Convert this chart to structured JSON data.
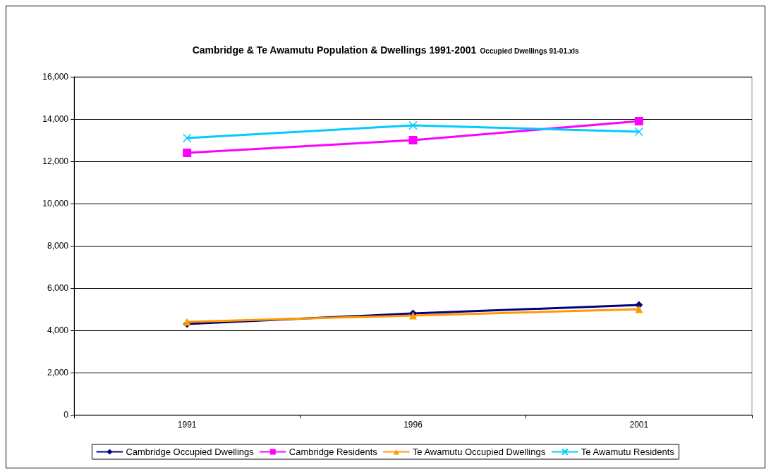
{
  "chart_data": {
    "type": "line",
    "title": "Cambridge & Te Awamutu Population & Dwellings 1991-2001",
    "subtitle": "Occupied Dwellings 91-01.xls",
    "categories": [
      "1991",
      "1996",
      "2001"
    ],
    "series": [
      {
        "name": "Cambridge Occupied Dwellings",
        "color": "#000080",
        "marker": "diamond",
        "values": [
          4300,
          4800,
          5200
        ]
      },
      {
        "name": "Cambridge Residents",
        "color": "#ff00ff",
        "marker": "square",
        "values": [
          12400,
          13000,
          13900
        ]
      },
      {
        "name": "Te Awamutu Occupied Dwellings",
        "color": "#ff9900",
        "marker": "triangle",
        "values": [
          4400,
          4700,
          5000
        ]
      },
      {
        "name": "Te Awamutu Residents",
        "color": "#00ccff",
        "marker": "cross",
        "values": [
          13100,
          13700,
          13400
        ]
      }
    ],
    "ylim": [
      0,
      16000
    ],
    "yticks": [
      0,
      {
        "value": 2000,
        "label": "2,000"
      },
      {
        "value": 4000,
        "label": "4,000"
      },
      {
        "value": 6000,
        "label": "6,000"
      },
      {
        "value": 8000,
        "label": "8,000"
      },
      {
        "value": 10000,
        "label": "10,000"
      },
      {
        "value": 12000,
        "label": "12,000"
      },
      {
        "value": 14000,
        "label": "14,000"
      },
      {
        "value": 16000,
        "label": "16,000"
      }
    ],
    "grid": "y",
    "legend": "bottom",
    "line_style": "solid"
  }
}
